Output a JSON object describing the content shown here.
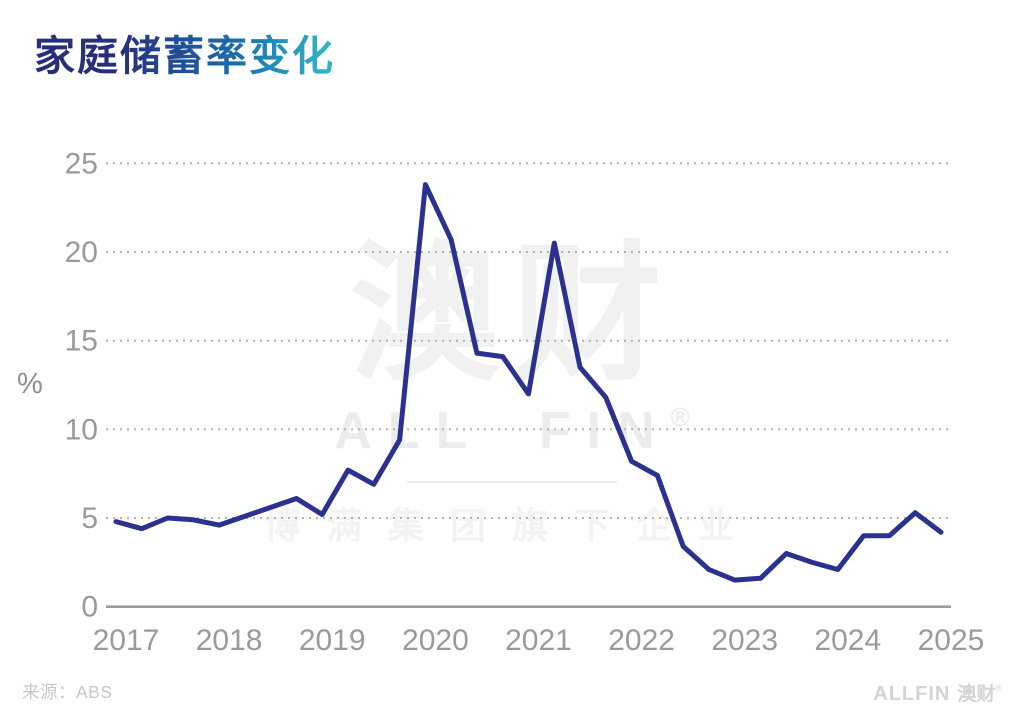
{
  "title": "家庭储蓄率变化",
  "y_unit": "%",
  "source": {
    "label": "来源：",
    "value": "ABS"
  },
  "watermark": {
    "cn": "澳财",
    "latin": "ALL FIN",
    "reg": "®",
    "sub": "博满集团旗下企业"
  },
  "logo": {
    "latin": "ALLFIN",
    "cn": "澳财",
    "reg": "®"
  },
  "colors": {
    "line": "#2b3191",
    "grid": "#b3b3b3",
    "axis": "#9c9c9c",
    "tick_text": "#9a9a9a",
    "title_gradient_start": "#272f7c",
    "title_gradient_mid": "#1a6fae",
    "title_gradient_end": "#2fb4c6"
  },
  "chart_data": {
    "type": "line",
    "title": "家庭储蓄率变化",
    "xlabel": "",
    "ylabel": "%",
    "ylim": [
      0,
      25
    ],
    "yticks": [
      0,
      5,
      10,
      15,
      20,
      25
    ],
    "xticks": [
      "2017",
      "2018",
      "2019",
      "2020",
      "2021",
      "2022",
      "2023",
      "2024",
      "2025"
    ],
    "grid": "horizontal-dotted",
    "legend_position": "none",
    "series_name": "家庭储蓄率",
    "x": [
      "2017Q1",
      "2017Q2",
      "2017Q3",
      "2017Q4",
      "2018Q1",
      "2018Q2",
      "2018Q3",
      "2018Q4",
      "2019Q1",
      "2019Q2",
      "2019Q3",
      "2019Q4",
      "2020Q1",
      "2020Q2",
      "2020Q3",
      "2020Q4",
      "2021Q1",
      "2021Q2",
      "2021Q3",
      "2021Q4",
      "2022Q1",
      "2022Q2",
      "2022Q3",
      "2022Q4",
      "2023Q1",
      "2023Q2",
      "2023Q3",
      "2023Q4",
      "2024Q1",
      "2024Q2",
      "2024Q3",
      "2024Q4",
      "2025Q1"
    ],
    "values": [
      4.8,
      4.4,
      5.0,
      4.9,
      4.6,
      5.1,
      5.6,
      6.1,
      5.2,
      7.7,
      6.9,
      9.4,
      23.8,
      20.7,
      14.3,
      14.1,
      12.0,
      20.5,
      13.5,
      11.8,
      8.2,
      7.4,
      3.4,
      2.1,
      1.5,
      1.6,
      3.0,
      2.5,
      2.1,
      4.0,
      4.0,
      5.3,
      4.2
    ]
  }
}
